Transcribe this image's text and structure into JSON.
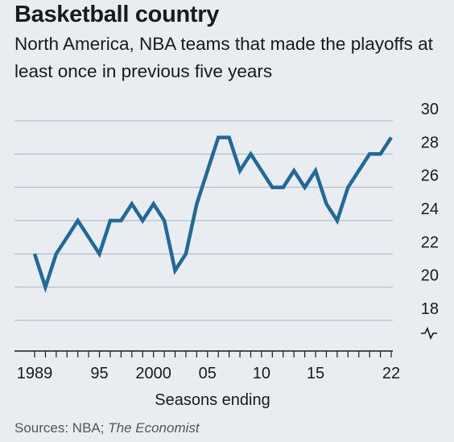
{
  "title": "Basketball country",
  "subtitle": "North America, NBA teams that made the playoffs at least once in previous five years",
  "source_label": "Sources: NBA;",
  "source_italic": "The Economist",
  "colors": {
    "line": "#1f6a9a",
    "grid": "#a9b3bd",
    "axis": "#1a1a1a",
    "background": "#e9edf1"
  },
  "chart_data": {
    "type": "line",
    "title": "Basketball country",
    "subtitle": "North America, NBA teams that made the playoffs at least once in previous five years",
    "xlabel": "Seasons ending",
    "ylabel": "",
    "xlim": [
      1989,
      2022
    ],
    "ylim": [
      18,
      30
    ],
    "y_axis_break": true,
    "y_ticks": [
      18,
      20,
      22,
      24,
      26,
      28,
      30
    ],
    "y_tick_labels": [
      "18",
      "20",
      "22",
      "24",
      "26",
      "28",
      "30"
    ],
    "x_ticks": [
      1989,
      1995,
      2000,
      2005,
      2010,
      2015,
      2022
    ],
    "x_tick_labels": [
      "1989",
      "95",
      "2000",
      "05",
      "10",
      "15",
      "22"
    ],
    "grid": true,
    "series": [
      {
        "x": [
          1989,
          1990,
          1991,
          1992,
          1993,
          1994,
          1995,
          1996,
          1997,
          1998,
          1999,
          2000,
          2001,
          2002,
          2003,
          2004,
          2005,
          2006,
          2007,
          2008,
          2009,
          2010,
          2011,
          2012,
          2013,
          2014,
          2015,
          2016,
          2017,
          2018,
          2019,
          2020,
          2021,
          2022
        ],
        "values": [
          22,
          20,
          22,
          23,
          24,
          23,
          22,
          24,
          24,
          25,
          24,
          25,
          24,
          21,
          22,
          25,
          27,
          29,
          29,
          27,
          28,
          27,
          26,
          26,
          27,
          26,
          27,
          25,
          24,
          26,
          27,
          28,
          28,
          29
        ]
      }
    ]
  }
}
